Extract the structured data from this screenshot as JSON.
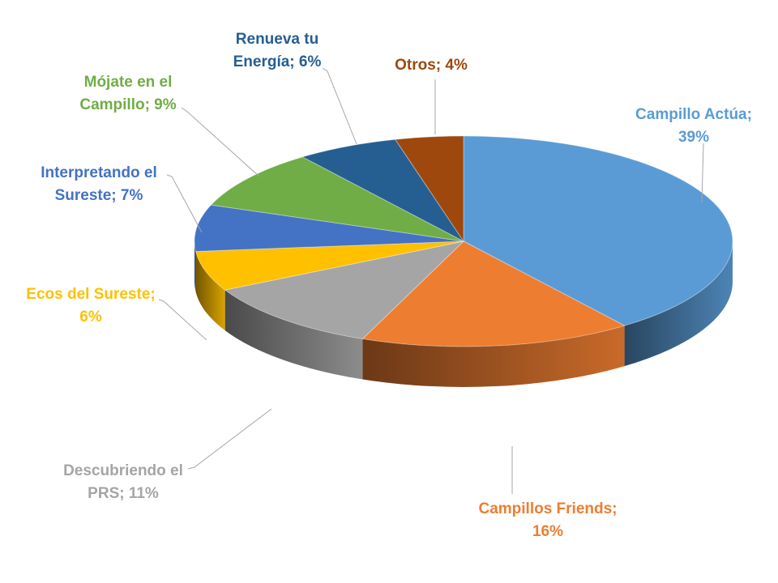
{
  "chart_data": {
    "type": "pie",
    "style": "3d",
    "title": "",
    "slices": [
      {
        "category": "Campillo Actúa",
        "value_label": "39%",
        "value": 39,
        "color": "#5B9BD5",
        "label_line1": "Campillo Actúa;",
        "label_line2": "39%"
      },
      {
        "category": "Campillos Friends",
        "value_label": "16%",
        "value": 16,
        "color": "#ED7D31",
        "label_line1": "Campillos Friends;",
        "label_line2": "16%"
      },
      {
        "category": "Descubriendo el PRS",
        "value_label": "11%",
        "value": 11,
        "color": "#A5A5A5",
        "label_line1": "Descubriendo el",
        "label_line2": "PRS; 11%"
      },
      {
        "category": "Ecos del Sureste",
        "value_label": "6%",
        "value": 6,
        "color": "#FFC000",
        "label_line1": "Ecos del Sureste;",
        "label_line2": "6%"
      },
      {
        "category": "Interpretando el Sureste",
        "value_label": "7%",
        "value": 7,
        "color": "#4472C4",
        "label_line1": "Interpretando el",
        "label_line2": "Sureste; 7%"
      },
      {
        "category": "Mójate en el Campillo",
        "value_label": "9%",
        "value": 9,
        "color": "#70AD47",
        "label_line1": "Mójate en el",
        "label_line2": "Campillo; 9%"
      },
      {
        "category": "Renueva tu Energía",
        "value_label": "6%",
        "value": 6,
        "color": "#255E91",
        "label_line1": "Renueva tu",
        "label_line2": "Energía; 6%"
      },
      {
        "category": "Otros",
        "value_label": "4%",
        "value": 4,
        "color": "#9E480E",
        "label_line1": "Otros; 4%",
        "label_line2": ""
      }
    ]
  }
}
